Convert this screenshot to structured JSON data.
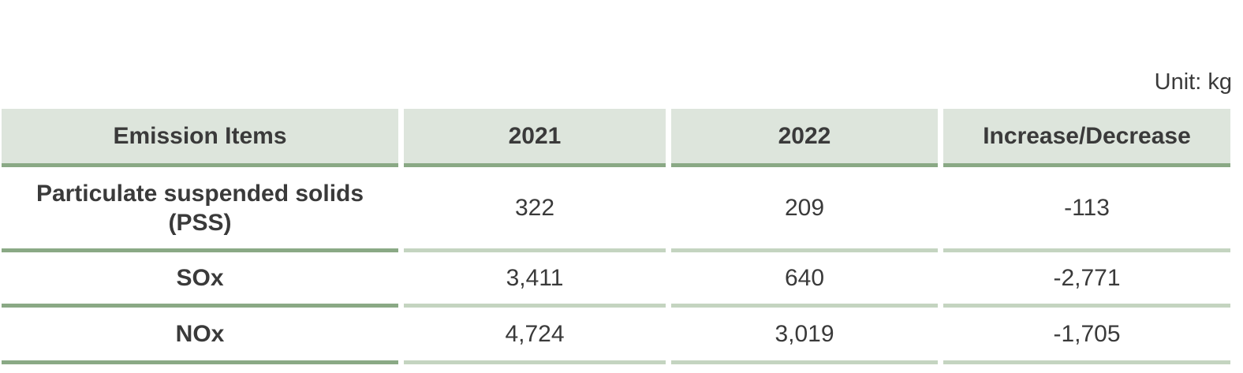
{
  "unit": "Unit: kg",
  "table": {
    "header": [
      "Emission Items",
      "2021",
      "2022",
      "Increase/Decrease"
    ],
    "rows": [
      [
        "Particulate suspended solids (PSS)",
        "322",
        "209",
        "-113"
      ],
      [
        "SOx",
        "3,411",
        "640",
        "-2,771"
      ],
      [
        "NOx",
        "4,724",
        "3,019",
        "-1,705"
      ]
    ]
  }
}
